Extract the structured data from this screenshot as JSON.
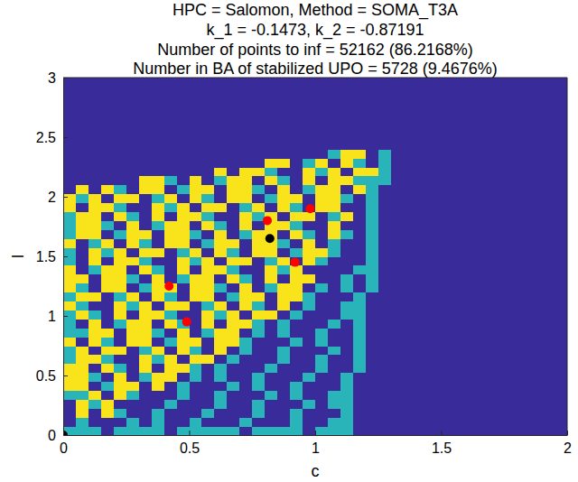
{
  "chart_data": {
    "type": "heatmap",
    "title": [
      "HPC = Salomon, Method = SOMA_T3A",
      "k_1 = -0.1473, k_2 = -0.87191",
      "Number of points to inf = 52162 (86.2168%)",
      "Number in BA of stabilized UPO = 5728 (9.4676%)"
    ],
    "xlabel": "c",
    "ylabel": "l",
    "xlim": [
      0,
      2
    ],
    "ylim": [
      0,
      3
    ],
    "xticks": [
      0,
      0.5,
      1,
      1.5,
      2
    ],
    "yticks": [
      0,
      0.5,
      1,
      1.5,
      2,
      2.5,
      3
    ],
    "colors": [
      "#3a2b9a",
      "#28b4b8",
      "#f9e41c"
    ],
    "cells": [
      [
        1,
        1,
        1,
        0,
        1,
        1,
        1,
        1,
        0,
        1,
        1,
        1,
        1,
        1,
        0,
        1,
        1,
        1,
        1,
        0,
        1,
        1,
        1,
        0,
        0,
        0,
        0,
        0,
        0,
        0,
        0,
        0,
        0,
        0,
        0,
        0,
        0,
        0,
        0,
        0
      ],
      [
        0,
        1,
        0,
        0,
        0,
        1,
        0,
        1,
        0,
        0,
        1,
        0,
        0,
        0,
        1,
        0,
        0,
        0,
        1,
        0,
        0,
        1,
        1,
        0,
        0,
        0,
        0,
        0,
        0,
        0,
        0,
        0,
        0,
        0,
        0,
        0,
        0,
        0,
        0,
        0
      ],
      [
        0,
        2,
        0,
        2,
        1,
        0,
        0,
        1,
        0,
        0,
        0,
        1,
        0,
        0,
        0,
        1,
        0,
        0,
        1,
        0,
        0,
        0,
        1,
        0,
        0,
        0,
        0,
        0,
        0,
        0,
        0,
        0,
        0,
        0,
        0,
        0,
        0,
        0,
        0,
        0
      ],
      [
        0,
        2,
        1,
        2,
        0,
        0,
        0,
        0,
        1,
        0,
        0,
        0,
        1,
        0,
        0,
        1,
        0,
        0,
        0,
        1,
        0,
        1,
        1,
        0,
        0,
        0,
        0,
        0,
        0,
        0,
        0,
        0,
        0,
        0,
        0,
        0,
        0,
        0,
        0,
        0
      ],
      [
        1,
        1,
        2,
        0,
        2,
        1,
        0,
        0,
        0,
        1,
        0,
        0,
        1,
        0,
        0,
        0,
        1,
        0,
        1,
        0,
        0,
        1,
        1,
        0,
        0,
        0,
        0,
        0,
        0,
        0,
        0,
        0,
        0,
        0,
        0,
        0,
        0,
        0,
        0,
        0
      ],
      [
        2,
        2,
        0,
        1,
        2,
        2,
        0,
        2,
        0,
        1,
        0,
        0,
        0,
        1,
        0,
        1,
        0,
        0,
        1,
        0,
        0,
        0,
        1,
        0,
        0,
        0,
        0,
        0,
        0,
        0,
        0,
        0,
        0,
        0,
        0,
        0,
        0,
        0,
        0,
        0
      ],
      [
        2,
        2,
        1,
        0,
        2,
        0,
        1,
        2,
        2,
        0,
        1,
        0,
        1,
        0,
        0,
        1,
        0,
        0,
        0,
        1,
        0,
        0,
        1,
        0,
        0,
        0,
        0,
        0,
        0,
        0,
        0,
        0,
        0,
        0,
        0,
        0,
        0,
        0,
        0,
        0
      ],
      [
        2,
        2,
        0,
        2,
        1,
        0,
        2,
        0,
        2,
        2,
        1,
        0,
        1,
        0,
        0,
        0,
        1,
        0,
        0,
        0,
        1,
        0,
        0,
        1,
        0,
        0,
        0,
        0,
        0,
        0,
        0,
        0,
        0,
        0,
        0,
        0,
        0,
        0,
        0,
        0
      ],
      [
        1,
        2,
        2,
        1,
        0,
        0,
        2,
        1,
        2,
        0,
        2,
        2,
        0,
        1,
        0,
        0,
        0,
        1,
        0,
        0,
        1,
        0,
        0,
        1,
        0,
        0,
        0,
        0,
        0,
        0,
        0,
        0,
        0,
        0,
        0,
        0,
        0,
        0,
        0,
        0
      ],
      [
        1,
        2,
        0,
        2,
        2,
        0,
        1,
        2,
        0,
        2,
        1,
        0,
        2,
        0,
        1,
        0,
        0,
        1,
        0,
        0,
        0,
        1,
        0,
        1,
        0,
        0,
        0,
        0,
        0,
        0,
        0,
        0,
        0,
        0,
        0,
        0,
        0,
        0,
        0,
        0
      ],
      [
        2,
        0,
        2,
        1,
        0,
        2,
        2,
        0,
        1,
        2,
        2,
        0,
        2,
        2,
        1,
        0,
        0,
        0,
        1,
        0,
        1,
        0,
        0,
        1,
        0,
        0,
        0,
        0,
        0,
        0,
        0,
        0,
        0,
        0,
        0,
        0,
        0,
        0,
        0,
        0
      ],
      [
        1,
        1,
        2,
        2,
        0,
        2,
        2,
        1,
        0,
        2,
        0,
        1,
        2,
        2,
        0,
        1,
        0,
        1,
        0,
        0,
        1,
        0,
        0,
        1,
        0,
        0,
        0,
        0,
        0,
        0,
        0,
        0,
        0,
        0,
        0,
        0,
        0,
        0,
        0,
        0
      ],
      [
        1,
        0,
        2,
        0,
        1,
        2,
        2,
        0,
        2,
        1,
        0,
        2,
        0,
        2,
        2,
        1,
        0,
        1,
        0,
        0,
        0,
        1,
        0,
        1,
        0,
        0,
        0,
        0,
        0,
        0,
        0,
        0,
        0,
        0,
        0,
        0,
        0,
        0,
        0,
        0
      ],
      [
        1,
        2,
        1,
        0,
        2,
        0,
        2,
        2,
        1,
        0,
        0,
        2,
        1,
        2,
        0,
        2,
        2,
        0,
        1,
        0,
        0,
        0,
        1,
        1,
        0,
        0,
        0,
        0,
        0,
        0,
        0,
        0,
        0,
        0,
        0,
        0,
        0,
        0,
        0,
        0
      ],
      [
        2,
        1,
        0,
        0,
        2,
        1,
        2,
        0,
        2,
        2,
        0,
        1,
        2,
        0,
        2,
        1,
        0,
        2,
        0,
        1,
        0,
        0,
        1,
        1,
        0,
        0,
        0,
        0,
        0,
        0,
        0,
        0,
        0,
        0,
        0,
        0,
        0,
        0,
        0,
        0
      ],
      [
        1,
        2,
        2,
        0,
        1,
        2,
        0,
        2,
        1,
        0,
        2,
        2,
        0,
        1,
        2,
        2,
        0,
        2,
        2,
        1,
        0,
        0,
        0,
        1,
        0,
        0,
        0,
        0,
        0,
        0,
        0,
        0,
        0,
        0,
        0,
        0,
        0,
        0,
        0,
        0
      ],
      [
        2,
        1,
        0,
        2,
        2,
        0,
        1,
        2,
        2,
        0,
        2,
        2,
        1,
        0,
        2,
        0,
        1,
        2,
        2,
        0,
        1,
        0,
        1,
        0,
        1,
        0,
        0,
        0,
        0,
        0,
        0,
        0,
        0,
        0,
        0,
        0,
        0,
        0,
        0,
        0
      ],
      [
        2,
        2,
        0,
        2,
        2,
        1,
        0,
        2,
        0,
        1,
        2,
        2,
        0,
        2,
        1,
        0,
        2,
        0,
        2,
        2,
        0,
        0,
        1,
        0,
        1,
        0,
        0,
        0,
        0,
        0,
        0,
        0,
        0,
        0,
        0,
        0,
        0,
        0,
        0,
        0
      ],
      [
        2,
        0,
        1,
        2,
        2,
        0,
        2,
        1,
        0,
        2,
        0,
        2,
        2,
        1,
        0,
        0,
        2,
        1,
        2,
        0,
        0,
        0,
        0,
        1,
        1,
        0,
        0,
        0,
        0,
        0,
        0,
        0,
        0,
        0,
        0,
        0,
        0,
        0,
        0,
        0
      ],
      [
        1,
        0,
        2,
        0,
        2,
        2,
        1,
        0,
        0,
        2,
        1,
        2,
        0,
        2,
        2,
        0,
        1,
        2,
        0,
        2,
        1,
        0,
        0,
        0,
        1,
        0,
        0,
        0,
        0,
        0,
        0,
        0,
        0,
        0,
        0,
        0,
        0,
        0,
        0,
        0
      ],
      [
        1,
        0,
        2,
        1,
        2,
        0,
        2,
        2,
        0,
        1,
        2,
        0,
        2,
        1,
        0,
        2,
        2,
        0,
        1,
        2,
        2,
        1,
        0,
        0,
        1,
        0,
        0,
        0,
        0,
        0,
        0,
        0,
        0,
        0,
        0,
        0,
        0,
        0,
        0,
        0
      ],
      [
        2,
        0,
        1,
        2,
        0,
        2,
        1,
        0,
        2,
        2,
        0,
        1,
        2,
        2,
        0,
        2,
        2,
        1,
        0,
        2,
        0,
        1,
        0,
        0,
        1,
        0,
        0,
        0,
        0,
        0,
        0,
        0,
        0,
        0,
        0,
        0,
        0,
        0,
        0,
        0
      ],
      [
        1,
        2,
        2,
        0,
        1,
        2,
        2,
        0,
        2,
        2,
        1,
        0,
        2,
        0,
        1,
        2,
        2,
        0,
        2,
        1,
        0,
        2,
        1,
        0,
        1,
        0,
        0,
        0,
        0,
        0,
        0,
        0,
        0,
        0,
        0,
        0,
        0,
        0,
        0,
        0
      ],
      [
        1,
        2,
        2,
        1,
        0,
        2,
        0,
        1,
        2,
        2,
        0,
        2,
        1,
        0,
        2,
        0,
        2,
        2,
        1,
        0,
        0,
        2,
        0,
        0,
        1,
        0,
        0,
        0,
        0,
        0,
        0,
        0,
        0,
        0,
        0,
        0,
        0,
        0,
        0,
        0
      ],
      [
        1,
        2,
        2,
        0,
        2,
        1,
        0,
        2,
        0,
        2,
        2,
        1,
        0,
        0,
        2,
        1,
        2,
        0,
        2,
        2,
        0,
        1,
        2,
        0,
        1,
        0,
        0,
        0,
        0,
        0,
        0,
        0,
        0,
        0,
        0,
        0,
        0,
        0,
        0,
        0
      ],
      [
        2,
        0,
        2,
        2,
        1,
        0,
        0,
        2,
        1,
        2,
        0,
        2,
        2,
        0,
        1,
        2,
        0,
        2,
        1,
        0,
        2,
        2,
        0,
        0,
        1,
        0,
        0,
        0,
        0,
        0,
        0,
        0,
        0,
        0,
        0,
        0,
        0,
        0,
        0,
        0
      ],
      [
        2,
        1,
        2,
        0,
        2,
        2,
        0,
        1,
        2,
        0,
        2,
        1,
        0,
        2,
        2,
        0,
        1,
        2,
        2,
        0,
        2,
        2,
        1,
        0,
        1,
        0,
        0,
        0,
        0,
        0,
        0,
        0,
        0,
        0,
        0,
        0,
        0,
        0,
        0,
        0
      ],
      [
        0,
        2,
        0,
        2,
        1,
        0,
        2,
        2,
        0,
        1,
        2,
        2,
        0,
        2,
        2,
        1,
        0,
        2,
        0,
        1,
        2,
        2,
        0,
        2,
        1,
        0,
        0,
        0,
        0,
        0,
        0,
        0,
        0,
        0,
        0,
        0,
        0,
        0,
        0,
        0
      ],
      [
        0,
        0,
        0,
        0,
        0,
        0,
        2,
        2,
        1,
        0,
        2,
        0,
        1,
        2,
        2,
        0,
        2,
        1,
        0,
        2,
        0,
        2,
        2,
        1,
        1,
        1,
        0,
        0,
        0,
        0,
        0,
        0,
        0,
        0,
        0,
        0,
        0,
        0,
        0,
        0
      ],
      [
        0,
        0,
        0,
        0,
        0,
        0,
        0,
        0,
        0,
        0,
        0,
        0,
        2,
        0,
        2,
        2,
        1,
        0,
        0,
        2,
        1,
        2,
        0,
        2,
        2,
        1,
        0,
        0,
        0,
        0,
        0,
        0,
        0,
        0,
        0,
        0,
        0,
        0,
        0,
        0
      ],
      [
        0,
        0,
        0,
        0,
        0,
        0,
        0,
        0,
        0,
        0,
        0,
        0,
        0,
        0,
        0,
        0,
        2,
        2,
        0,
        1,
        2,
        0,
        2,
        1,
        0,
        1,
        0,
        0,
        0,
        0,
        0,
        0,
        0,
        0,
        0,
        0,
        0,
        0,
        0,
        0
      ],
      [
        0,
        0,
        0,
        0,
        0,
        0,
        0,
        0,
        0,
        0,
        0,
        0,
        0,
        0,
        0,
        0,
        0,
        0,
        0,
        0,
        0,
        1,
        2,
        2,
        0,
        1,
        0,
        0,
        0,
        0,
        0,
        0,
        0,
        0,
        0,
        0,
        0,
        0,
        0,
        0
      ],
      [
        0,
        0,
        0,
        0,
        0,
        0,
        0,
        0,
        0,
        0,
        0,
        0,
        0,
        0,
        0,
        0,
        0,
        0,
        0,
        0,
        0,
        0,
        0,
        0,
        0,
        0,
        0,
        0,
        0,
        0,
        0,
        0,
        0,
        0,
        0,
        0,
        0,
        0,
        0,
        0
      ],
      [
        0,
        0,
        0,
        0,
        0,
        0,
        0,
        0,
        0,
        0,
        0,
        0,
        0,
        0,
        0,
        0,
        0,
        0,
        0,
        0,
        0,
        0,
        0,
        0,
        0,
        0,
        0,
        0,
        0,
        0,
        0,
        0,
        0,
        0,
        0,
        0,
        0,
        0,
        0,
        0
      ],
      [
        0,
        0,
        0,
        0,
        0,
        0,
        0,
        0,
        0,
        0,
        0,
        0,
        0,
        0,
        0,
        0,
        0,
        0,
        0,
        0,
        0,
        0,
        0,
        0,
        0,
        0,
        0,
        0,
        0,
        0,
        0,
        0,
        0,
        0,
        0,
        0,
        0,
        0,
        0,
        0
      ],
      [
        0,
        0,
        0,
        0,
        0,
        0,
        0,
        0,
        0,
        0,
        0,
        0,
        0,
        0,
        0,
        0,
        0,
        0,
        0,
        0,
        0,
        0,
        0,
        0,
        0,
        0,
        0,
        0,
        0,
        0,
        0,
        0,
        0,
        0,
        0,
        0,
        0,
        0,
        0,
        0
      ],
      [
        0,
        0,
        0,
        0,
        0,
        0,
        0,
        0,
        0,
        0,
        0,
        0,
        0,
        0,
        0,
        0,
        0,
        0,
        0,
        0,
        0,
        0,
        0,
        0,
        0,
        0,
        0,
        0,
        0,
        0,
        0,
        0,
        0,
        0,
        0,
        0,
        0,
        0,
        0,
        0
      ],
      [
        0,
        0,
        0,
        0,
        0,
        0,
        0,
        0,
        0,
        0,
        0,
        0,
        0,
        0,
        0,
        0,
        0,
        0,
        0,
        0,
        0,
        0,
        0,
        0,
        0,
        0,
        0,
        0,
        0,
        0,
        0,
        0,
        0,
        0,
        0,
        0,
        0,
        0,
        0,
        0
      ],
      [
        0,
        0,
        0,
        0,
        0,
        0,
        0,
        0,
        0,
        0,
        0,
        0,
        0,
        0,
        0,
        0,
        0,
        0,
        0,
        0,
        0,
        0,
        0,
        0,
        0,
        0,
        0,
        0,
        0,
        0,
        0,
        0,
        0,
        0,
        0,
        0,
        0,
        0,
        0,
        0
      ],
      [
        0,
        0,
        0,
        0,
        0,
        0,
        0,
        0,
        0,
        0,
        0,
        0,
        0,
        0,
        0,
        0,
        0,
        0,
        0,
        0,
        0,
        0,
        0,
        0,
        0,
        0,
        0,
        0,
        0,
        0,
        0,
        0,
        0,
        0,
        0,
        0,
        0,
        0,
        0,
        0
      ]
    ],
    "series": [
      {
        "type": "scatter",
        "color": "#ff0000",
        "marker": "circle",
        "x": [
          0.42,
          0.49,
          0.81,
          0.92,
          0.98
        ],
        "values": [
          1.25,
          0.95,
          1.8,
          1.45,
          1.9
        ]
      },
      {
        "type": "scatter",
        "color": "#000000",
        "marker": "circle",
        "x": [
          0.82,
          0
        ],
        "values": [
          1.65,
          0
        ]
      }
    ]
  }
}
